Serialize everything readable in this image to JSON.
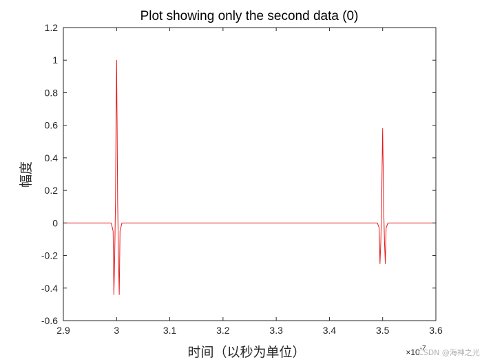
{
  "chart_data": {
    "type": "line",
    "title": "Plot showing only the second data (0)",
    "xlabel": "时间（以秒为单位）",
    "ylabel": "幅度",
    "x_exponent_label": "×10",
    "x_exponent_power": "-7",
    "xlim": [
      2.9e-07,
      3.6e-07
    ],
    "ylim": [
      -0.6,
      1.2
    ],
    "x_ticks": [
      2.9e-07,
      3e-07,
      3.1e-07,
      3.2e-07,
      3.3e-07,
      3.4e-07,
      3.5e-07,
      3.6e-07
    ],
    "x_tick_labels": [
      "2.9",
      "3",
      "3.1",
      "3.2",
      "3.3",
      "3.4",
      "3.5",
      "3.6"
    ],
    "y_ticks": [
      -0.6,
      -0.4,
      -0.2,
      0,
      0.2,
      0.4,
      0.6,
      0.8,
      1,
      1.2
    ],
    "y_tick_labels": [
      "-0.6",
      "-0.4",
      "-0.2",
      "0",
      "0.2",
      "0.4",
      "0.6",
      "0.8",
      "1",
      "1.2"
    ],
    "grid": false,
    "series": [
      {
        "color": "#e41a1c",
        "x": [
          2.9e-07,
          2.99e-07,
          2.9935e-07,
          2.995e-07,
          2.9965e-07,
          2.998e-07,
          2.999e-07,
          3e-07,
          3.001e-07,
          3.002e-07,
          3.0035e-07,
          3.005e-07,
          3.0065e-07,
          3.01e-07,
          3.49e-07,
          3.4935e-07,
          3.495e-07,
          3.4965e-07,
          3.498e-07,
          3.499e-07,
          3.5e-07,
          3.501e-07,
          3.502e-07,
          3.5035e-07,
          3.505e-07,
          3.5065e-07,
          3.51e-07,
          3.6e-07
        ],
        "y": [
          0,
          0,
          -0.05,
          -0.44,
          -0.2,
          0.14,
          0.6,
          1.0,
          0.6,
          0.14,
          -0.2,
          -0.44,
          -0.05,
          0,
          0,
          -0.03,
          -0.25,
          -0.12,
          0.08,
          0.35,
          0.58,
          0.35,
          0.08,
          -0.12,
          -0.25,
          -0.03,
          0,
          0
        ]
      }
    ]
  },
  "watermark": "CSDN @海神之光"
}
